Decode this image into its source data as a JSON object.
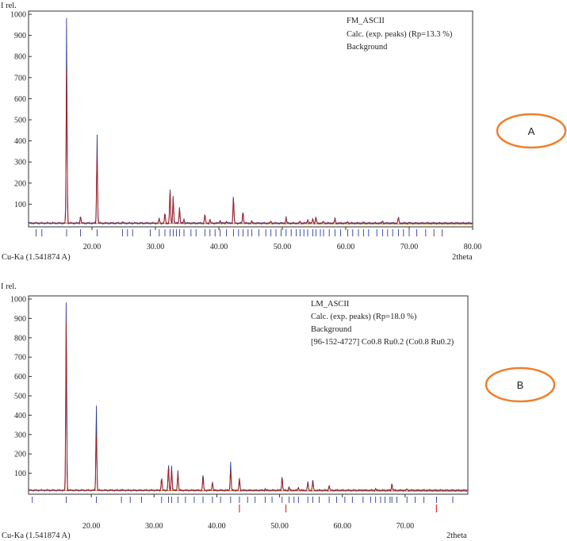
{
  "chart_data": [
    {
      "id": "A",
      "type": "line",
      "panel_label": "A",
      "ylabel": "I rel.",
      "xlabel": "2theta",
      "wavelength_label": "Cu-Ka (1.541874 A)",
      "xlim": [
        10,
        80
      ],
      "ylim": [
        0,
        1000
      ],
      "x_ticks": [
        20,
        30,
        40,
        50,
        60,
        70,
        80
      ],
      "y_ticks": [
        100,
        200,
        300,
        400,
        500,
        600,
        700,
        800,
        900,
        1000
      ],
      "colors": {
        "observed": "#2b3d9c",
        "calculated": "#a31f1f",
        "background": "#f08c1e",
        "ticks": "#2b3d9c"
      },
      "legend": [
        {
          "label": "FM_ASCII",
          "color": "#2b3d9c"
        },
        {
          "label": "Calc. (exp. peaks) (Rp=13.3 %)",
          "color": "#a31f1f"
        },
        {
          "label": "Background",
          "color": "#f08c1e"
        }
      ],
      "background_level": 10,
      "observed_peaks": [
        {
          "x": 16.0,
          "y": 1000
        },
        {
          "x": 18.2,
          "y": 45
        },
        {
          "x": 20.8,
          "y": 440
        },
        {
          "x": 24.8,
          "y": 15
        },
        {
          "x": 30.6,
          "y": 35
        },
        {
          "x": 31.5,
          "y": 60
        },
        {
          "x": 32.3,
          "y": 180
        },
        {
          "x": 32.8,
          "y": 140
        },
        {
          "x": 33.8,
          "y": 90
        },
        {
          "x": 34.5,
          "y": 30
        },
        {
          "x": 37.8,
          "y": 55
        },
        {
          "x": 38.6,
          "y": 30
        },
        {
          "x": 40.2,
          "y": 25
        },
        {
          "x": 41.2,
          "y": 20
        },
        {
          "x": 42.3,
          "y": 140
        },
        {
          "x": 43.8,
          "y": 70
        },
        {
          "x": 45.2,
          "y": 20
        },
        {
          "x": 48.2,
          "y": 20
        },
        {
          "x": 50.6,
          "y": 40
        },
        {
          "x": 52.8,
          "y": 20
        },
        {
          "x": 54.0,
          "y": 30
        },
        {
          "x": 54.8,
          "y": 35
        },
        {
          "x": 55.3,
          "y": 40
        },
        {
          "x": 56.5,
          "y": 20
        },
        {
          "x": 58.3,
          "y": 35
        },
        {
          "x": 60.3,
          "y": 18
        },
        {
          "x": 62.8,
          "y": 15
        },
        {
          "x": 65.8,
          "y": 20
        },
        {
          "x": 68.3,
          "y": 40
        },
        {
          "x": 70.0,
          "y": 15
        },
        {
          "x": 72.6,
          "y": 12
        }
      ],
      "calculated_peaks": [
        {
          "x": 16.0,
          "y": 750
        },
        {
          "x": 18.2,
          "y": 40
        },
        {
          "x": 20.8,
          "y": 330
        },
        {
          "x": 24.8,
          "y": 12
        },
        {
          "x": 30.6,
          "y": 30
        },
        {
          "x": 31.5,
          "y": 55
        },
        {
          "x": 32.3,
          "y": 160
        },
        {
          "x": 32.8,
          "y": 130
        },
        {
          "x": 33.8,
          "y": 80
        },
        {
          "x": 34.5,
          "y": 25
        },
        {
          "x": 37.8,
          "y": 50
        },
        {
          "x": 38.6,
          "y": 25
        },
        {
          "x": 40.2,
          "y": 22
        },
        {
          "x": 41.2,
          "y": 18
        },
        {
          "x": 42.3,
          "y": 130
        },
        {
          "x": 43.8,
          "y": 60
        },
        {
          "x": 45.2,
          "y": 18
        },
        {
          "x": 48.2,
          "y": 18
        },
        {
          "x": 50.6,
          "y": 35
        },
        {
          "x": 52.8,
          "y": 18
        },
        {
          "x": 54.0,
          "y": 25
        },
        {
          "x": 54.8,
          "y": 30
        },
        {
          "x": 55.3,
          "y": 35
        },
        {
          "x": 56.5,
          "y": 18
        },
        {
          "x": 58.3,
          "y": 30
        },
        {
          "x": 60.3,
          "y": 15
        },
        {
          "x": 62.8,
          "y": 12
        },
        {
          "x": 65.8,
          "y": 18
        },
        {
          "x": 68.3,
          "y": 35
        },
        {
          "x": 70.0,
          "y": 12
        },
        {
          "x": 72.6,
          "y": 10
        }
      ],
      "reflection_ticks": [
        11.2,
        12.1,
        16.0,
        18.2,
        20.8,
        24.8,
        25.6,
        26.4,
        29.2,
        30.6,
        31.5,
        32.3,
        32.8,
        33.3,
        33.8,
        34.5,
        35.6,
        36.4,
        37.8,
        38.6,
        39.4,
        40.2,
        41.2,
        42.3,
        43.1,
        43.8,
        44.6,
        45.2,
        46.3,
        47.4,
        48.2,
        49.0,
        49.8,
        50.6,
        51.4,
        52.2,
        52.8,
        53.4,
        54.0,
        54.8,
        55.3,
        56.0,
        56.5,
        57.4,
        58.3,
        59.2,
        60.3,
        61.1,
        62.0,
        62.8,
        63.6,
        64.9,
        65.8,
        66.6,
        67.4,
        68.3,
        69.1,
        70.0,
        71.2,
        72.6,
        73.9,
        75.2
      ]
    },
    {
      "id": "B",
      "type": "line",
      "panel_label": "B",
      "ylabel": "I rel.",
      "xlabel": "2theta",
      "wavelength_label": "Cu-Ka (1.541874 A)",
      "xlim": [
        10,
        80
      ],
      "ylim": [
        0,
        1000
      ],
      "x_ticks": [
        20,
        30,
        40,
        50,
        60,
        70
      ],
      "y_ticks": [
        100,
        200,
        300,
        400,
        500,
        600,
        700,
        800,
        900,
        1000
      ],
      "colors": {
        "observed": "#2b3d9c",
        "calculated": "#a31f1f",
        "background": "#f08c1e",
        "ticks": "#2b3d9c",
        "phase_ticks": "#e03030"
      },
      "legend": [
        {
          "label": "LM_ASCII",
          "color": "#2b3d9c"
        },
        {
          "label": "Calc. (exp. peaks) (Rp=18.0 %)",
          "color": "#a31f1f"
        },
        {
          "label": "Background",
          "color": "#f08c1e"
        },
        {
          "label": "[96-152-4727] Co0.8 Ru0.2 (Co0.8 Ru0.2)",
          "color": "#e03030"
        }
      ],
      "background_level": 12,
      "observed_peaks": [
        {
          "x": 16.0,
          "y": 1000
        },
        {
          "x": 20.8,
          "y": 460
        },
        {
          "x": 24.8,
          "y": 15
        },
        {
          "x": 31.2,
          "y": 80
        },
        {
          "x": 32.3,
          "y": 150
        },
        {
          "x": 32.8,
          "y": 140
        },
        {
          "x": 33.8,
          "y": 120
        },
        {
          "x": 37.8,
          "y": 100
        },
        {
          "x": 39.3,
          "y": 60
        },
        {
          "x": 42.2,
          "y": 160
        },
        {
          "x": 43.6,
          "y": 70
        },
        {
          "x": 47.7,
          "y": 20
        },
        {
          "x": 50.4,
          "y": 90
        },
        {
          "x": 51.5,
          "y": 30
        },
        {
          "x": 53.0,
          "y": 30
        },
        {
          "x": 54.5,
          "y": 60
        },
        {
          "x": 55.3,
          "y": 70
        },
        {
          "x": 57.9,
          "y": 40
        },
        {
          "x": 63.3,
          "y": 15
        },
        {
          "x": 65.3,
          "y": 20
        },
        {
          "x": 67.9,
          "y": 50
        },
        {
          "x": 70.3,
          "y": 20
        },
        {
          "x": 75.0,
          "y": 12
        }
      ],
      "calculated_peaks": [
        {
          "x": 16.0,
          "y": 890
        },
        {
          "x": 20.8,
          "y": 300
        },
        {
          "x": 24.8,
          "y": 12
        },
        {
          "x": 31.2,
          "y": 75
        },
        {
          "x": 32.3,
          "y": 130
        },
        {
          "x": 32.8,
          "y": 120
        },
        {
          "x": 33.8,
          "y": 100
        },
        {
          "x": 37.8,
          "y": 80
        },
        {
          "x": 39.3,
          "y": 50
        },
        {
          "x": 42.2,
          "y": 110
        },
        {
          "x": 43.6,
          "y": 75
        },
        {
          "x": 47.7,
          "y": 18
        },
        {
          "x": 50.4,
          "y": 75
        },
        {
          "x": 51.5,
          "y": 25
        },
        {
          "x": 53.0,
          "y": 25
        },
        {
          "x": 54.5,
          "y": 50
        },
        {
          "x": 55.3,
          "y": 60
        },
        {
          "x": 57.9,
          "y": 35
        },
        {
          "x": 63.3,
          "y": 12
        },
        {
          "x": 65.3,
          "y": 18
        },
        {
          "x": 67.9,
          "y": 45
        },
        {
          "x": 70.3,
          "y": 18
        },
        {
          "x": 75.0,
          "y": 10
        }
      ],
      "reflection_ticks": [
        10.6,
        16.0,
        20.8,
        24.8,
        26.2,
        28.0,
        31.2,
        32.3,
        32.8,
        33.8,
        35.0,
        36.4,
        37.8,
        39.3,
        40.6,
        42.2,
        43.6,
        44.9,
        46.1,
        47.7,
        48.8,
        50.4,
        51.5,
        52.3,
        53.0,
        54.5,
        55.3,
        56.3,
        57.9,
        59.1,
        60.4,
        61.6,
        63.3,
        64.5,
        65.3,
        66.1,
        66.8,
        67.6,
        67.9,
        68.7,
        70.3,
        71.6,
        73.0,
        75.0,
        77.6
      ],
      "phase_ticks": [
        43.6,
        51.0,
        75.0
      ]
    }
  ]
}
